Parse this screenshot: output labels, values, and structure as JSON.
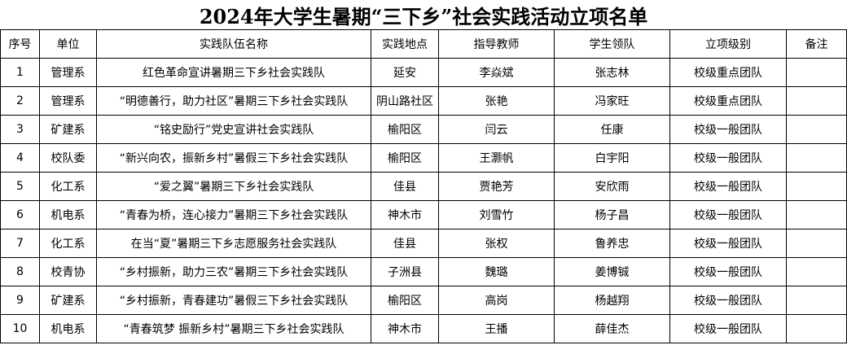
{
  "title": "2024年大学生暑期“三下乡”社会实践活动立项名单",
  "headers": [
    "序号",
    "单位",
    "实践队伍名称",
    "实践地点",
    "指导教师",
    "学生领队",
    "立项级别",
    "备注"
  ],
  "rows": [
    [
      "1",
      "管理系",
      "红色革命宣讲暑期三下乡社会实践队",
      "延安",
      "李焱斌",
      "张志林",
      "校级重点团队",
      ""
    ],
    [
      "2",
      "管理系",
      "“明德善行，助力社区”暑期三下乡社会实践队",
      "阴山路社区",
      "张艳",
      "冯家旺",
      "校级重点团队",
      ""
    ],
    [
      "3",
      "矿建系",
      "“铭史励行”党史宣讲社会实践队",
      "榆阳区",
      "闫云",
      "任康",
      "校级一般团队",
      ""
    ],
    [
      "4",
      "校队委",
      "“新兴向农，振新乡村”暑假三下乡社会实践队",
      "榆阳区",
      "王灏帆",
      "白宇阳",
      "校级一般团队",
      ""
    ],
    [
      "5",
      "化工系",
      "“爱之翼”暑期三下乡社会实践队",
      "佳县",
      "贾艳芳",
      "安欣雨",
      "校级一般团队",
      ""
    ],
    [
      "6",
      "机电系",
      "“青春为桥，连心接力”暑期三下乡社会实践队",
      "神木市",
      "刘雪竹",
      "杨子昌",
      "校级一般团队",
      ""
    ],
    [
      "7",
      "化工系",
      "在当“夏”暑期三下乡志愿服务社会实践队",
      "佳县",
      "张权",
      "鲁养忠",
      "校级一般团队",
      ""
    ],
    [
      "8",
      "校青协",
      "“乡村振新，助力三农”暑期三下乡社会实践队",
      "子洲县",
      "魏璐",
      "姜博铖",
      "校级一般团队",
      ""
    ],
    [
      "9",
      "矿建系",
      "“乡村振新，青春建功”暑假三下乡社会实践队",
      "榆阳区",
      "高岗",
      "杨越翔",
      "校级一般团队",
      ""
    ],
    [
      "10",
      "机电系",
      "“青春筑梦 振新乡村”暑期三下乡社会实践队",
      "神木市",
      "王播",
      "薛佳杰",
      "校级一般团队",
      ""
    ]
  ]
}
